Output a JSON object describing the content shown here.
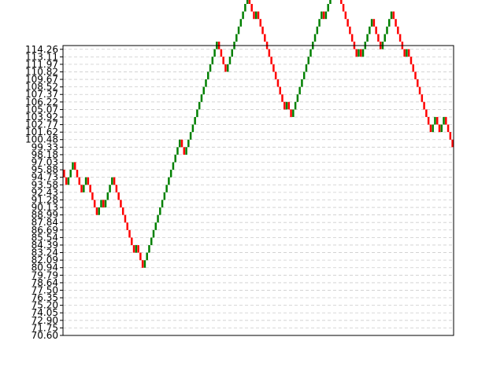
{
  "chart_data": {
    "type": "renko",
    "title": "",
    "xlabel": "",
    "ylabel": "",
    "ylim": [
      70.6,
      114.83
    ],
    "brick_size": 1.15,
    "grid": {
      "y": true,
      "style": "dashed",
      "color": "#cccccc"
    },
    "colors": {
      "up": "#008000",
      "down": "#ff0000",
      "axes": "#000000",
      "background": "#ffffff"
    },
    "yticks": [
      "70.60",
      "71.75",
      "72.90",
      "74.05",
      "75.20",
      "76.35",
      "77.50",
      "78.64",
      "79.79",
      "80.94",
      "82.09",
      "83.24",
      "84.39",
      "85.54",
      "86.69",
      "87.84",
      "88.99",
      "90.13",
      "91.28",
      "92.43",
      "93.58",
      "94.73",
      "95.88",
      "97.03",
      "98.18",
      "99.33",
      "100.48",
      "101.62",
      "102.77",
      "103.92",
      "105.07",
      "106.22",
      "107.37",
      "108.52",
      "109.67",
      "110.82",
      "111.97",
      "113.11",
      "114.26"
    ],
    "start_price": 95.88,
    "moves": [
      -1,
      -1,
      1,
      1,
      1,
      -1,
      -1,
      -1,
      -1,
      1,
      1,
      -1,
      -1,
      -1,
      -1,
      -1,
      1,
      1,
      -1,
      1,
      1,
      1,
      1,
      -1,
      -1,
      -1,
      -1,
      -1,
      -1,
      -1,
      -1,
      -1,
      -1,
      1,
      -1,
      -1,
      -1,
      1,
      1,
      1,
      1,
      1,
      1,
      1,
      1,
      1,
      1,
      1,
      1,
      1,
      1,
      1,
      1,
      1,
      -1,
      -1,
      1,
      1,
      1,
      1,
      1,
      1,
      1,
      1,
      1,
      1,
      1,
      1,
      1,
      1,
      1,
      -1,
      -1,
      -1,
      -1,
      1,
      1,
      1,
      1,
      1,
      1,
      1,
      1,
      1,
      1,
      -1,
      -1,
      -1,
      1,
      -1,
      -1,
      -1,
      -1,
      -1,
      -1,
      -1,
      -1,
      -1,
      -1,
      -1,
      -1,
      -1,
      1,
      -1,
      -1,
      1,
      1,
      1,
      1,
      1,
      1,
      1,
      1,
      1,
      1,
      1,
      1,
      1,
      1,
      -1,
      1,
      1,
      1,
      1,
      1,
      -1,
      -1,
      -1,
      -1,
      -1,
      -1,
      -1,
      -1,
      -1,
      -1,
      1,
      -1,
      1,
      1,
      1,
      1,
      1,
      -1,
      -1,
      -1,
      -1,
      1,
      1,
      1,
      1,
      1,
      -1,
      -1,
      -1,
      -1,
      -1,
      -1,
      1,
      -1,
      -1,
      -1,
      -1,
      -1,
      -1,
      -1,
      -1,
      -1,
      -1,
      -1,
      1,
      1,
      -1,
      -1,
      1,
      1,
      -1,
      -1,
      -1,
      -1
    ]
  }
}
